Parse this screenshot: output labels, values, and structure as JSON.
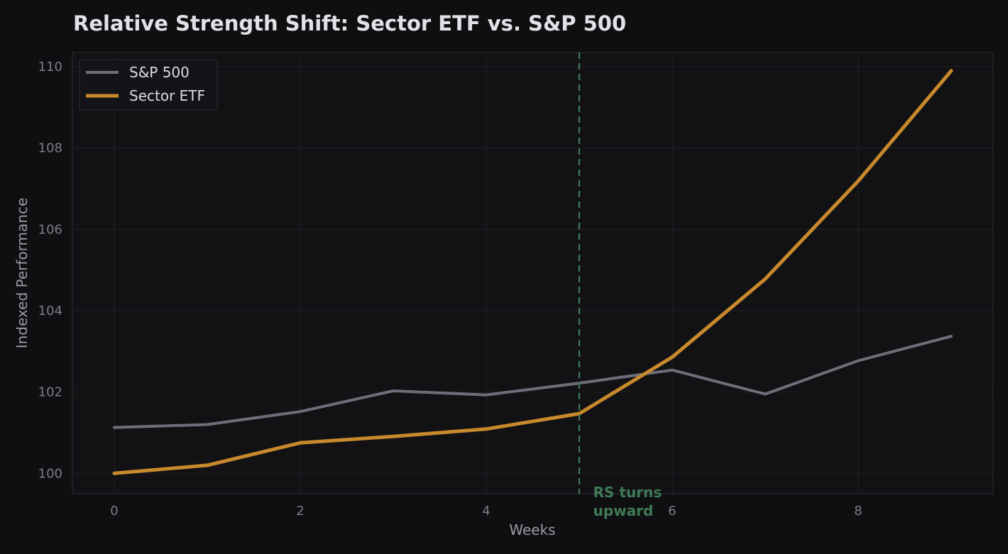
{
  "chart_data": {
    "type": "line",
    "title": "Relative Strength Shift: Sector ETF vs. S&P 500",
    "xlabel": "Weeks",
    "ylabel": "Indexed Performance",
    "xlim": [
      -0.45,
      9.45
    ],
    "ylim": [
      99.5,
      110.35
    ],
    "xticks": [
      0,
      2,
      4,
      6,
      8
    ],
    "yticks": [
      100,
      102,
      104,
      106,
      108,
      110
    ],
    "grid": true,
    "legend_position": "top-left",
    "x": [
      0,
      1,
      2,
      3,
      4,
      5,
      6,
      7,
      8,
      9
    ],
    "series": [
      {
        "name": "S&P 500",
        "color": "#6e6e78",
        "values": [
          101.13,
          101.2,
          101.52,
          102.03,
          101.93,
          102.22,
          102.54,
          101.95,
          102.77,
          103.37
        ]
      },
      {
        "name": "Sector ETF",
        "color": "#c8892c",
        "values": [
          100.0,
          100.2,
          100.75,
          100.91,
          101.09,
          101.47,
          102.86,
          104.78,
          107.19,
          109.9
        ]
      }
    ],
    "marker": {
      "x": 5,
      "color": "#3f7a57",
      "style": "dashed"
    },
    "annotation": {
      "lines": [
        "RS turns",
        "upward"
      ],
      "x": 5.15,
      "color": "#3f7a57"
    }
  }
}
